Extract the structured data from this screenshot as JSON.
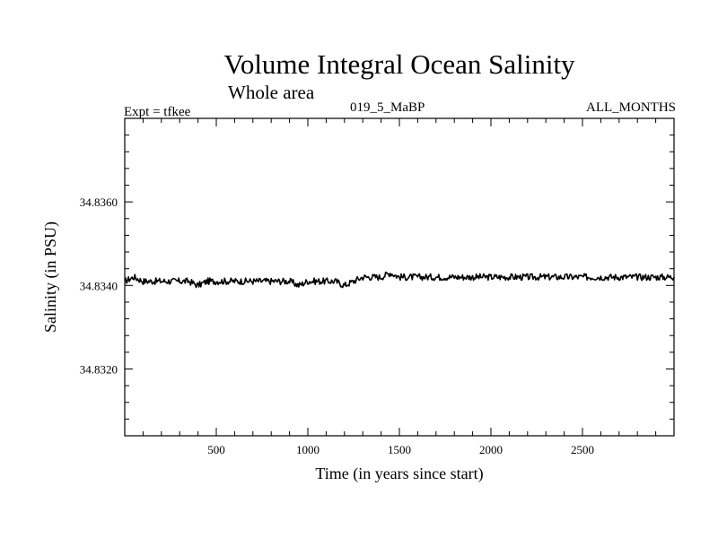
{
  "header": {
    "title": "Volume Integral Ocean Salinity",
    "subtitle": "Whole area",
    "expt": "Expt = tfkee",
    "run_id": "019_5_MaBP",
    "months": "ALL_MONTHS"
  },
  "chart_data": {
    "type": "line",
    "title": "Volume Integral Ocean Salinity",
    "subtitle": "Whole area",
    "xlabel": "Time (in years since start)",
    "ylabel": "Salinity (in PSU)",
    "xlim": [
      0,
      3000
    ],
    "ylim": [
      34.8304,
      34.838
    ],
    "x_ticks": [
      500,
      1000,
      1500,
      2000,
      2500
    ],
    "x_tick_labels": [
      "500",
      "1000",
      "1500",
      "2000",
      "2500"
    ],
    "y_ticks": [
      34.832,
      34.834,
      34.836
    ],
    "y_tick_labels": [
      "34.8320",
      "34.8340",
      "34.8360"
    ],
    "grid": false,
    "series": [
      {
        "color": "#000000",
        "x": [
          0,
          50,
          100,
          150,
          200,
          250,
          300,
          350,
          400,
          450,
          500,
          550,
          600,
          650,
          700,
          750,
          800,
          850,
          900,
          950,
          1000,
          1050,
          1100,
          1150,
          1200,
          1250,
          1300,
          1350,
          1400,
          1450,
          1500,
          1550,
          1600,
          1650,
          1700,
          1750,
          1800,
          1850,
          1900,
          1950,
          2000,
          2050,
          2100,
          2150,
          2200,
          2250,
          2300,
          2350,
          2400,
          2450,
          2500,
          2550,
          2600,
          2650,
          2700,
          2750,
          2800,
          2850,
          2900,
          2950,
          3000
        ],
        "values": [
          34.8341,
          34.8342,
          34.8341,
          34.8341,
          34.8341,
          34.8341,
          34.8341,
          34.8341,
          34.834,
          34.8341,
          34.8341,
          34.8341,
          34.8341,
          34.8341,
          34.8341,
          34.8341,
          34.8341,
          34.8341,
          34.8341,
          34.834,
          34.8341,
          34.8341,
          34.8341,
          34.8341,
          34.834,
          34.8341,
          34.8342,
          34.8342,
          34.8342,
          34.8343,
          34.8342,
          34.8342,
          34.8342,
          34.8342,
          34.8342,
          34.8342,
          34.8342,
          34.8342,
          34.8342,
          34.8342,
          34.8342,
          34.8342,
          34.8342,
          34.8342,
          34.8342,
          34.8342,
          34.8342,
          34.8342,
          34.8342,
          34.8342,
          34.8342,
          34.8342,
          34.8342,
          34.8342,
          34.8342,
          34.8342,
          34.8342,
          34.8342,
          34.8342,
          34.8342,
          34.8342
        ]
      }
    ]
  }
}
